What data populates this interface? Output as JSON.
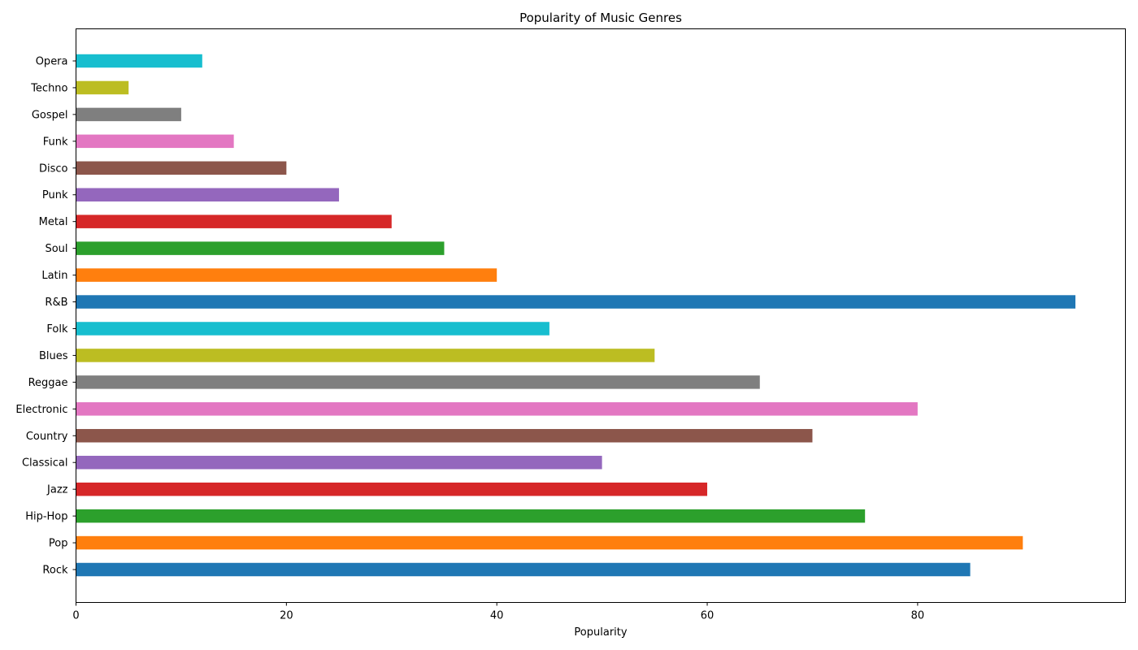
{
  "chart_data": {
    "type": "bar",
    "orientation": "horizontal",
    "title": "Popularity of Music Genres",
    "xlabel": "Popularity",
    "ylabel": "",
    "xlim": [
      0,
      99.75
    ],
    "xticks": [
      "0",
      "20",
      "40",
      "60",
      "80"
    ],
    "grid": false,
    "categories": [
      "Rock",
      "Pop",
      "Hip-Hop",
      "Jazz",
      "Classical",
      "Country",
      "Electronic",
      "Reggae",
      "Blues",
      "Folk",
      "R&B",
      "Latin",
      "Soul",
      "Metal",
      "Punk",
      "Disco",
      "Funk",
      "Gospel",
      "Techno",
      "Opera"
    ],
    "values": [
      85,
      90,
      75,
      60,
      50,
      70,
      80,
      65,
      55,
      45,
      95,
      40,
      35,
      30,
      25,
      20,
      15,
      10,
      5,
      12
    ],
    "colors": [
      "#1f77b4",
      "#ff7f0e",
      "#2ca02c",
      "#d62728",
      "#9467bd",
      "#8c564b",
      "#e377c2",
      "#7f7f7f",
      "#bcbd22",
      "#17becf",
      "#1f77b4",
      "#ff7f0e",
      "#2ca02c",
      "#d62728",
      "#9467bd",
      "#8c564b",
      "#e377c2",
      "#7f7f7f",
      "#bcbd22",
      "#17becf"
    ]
  }
}
